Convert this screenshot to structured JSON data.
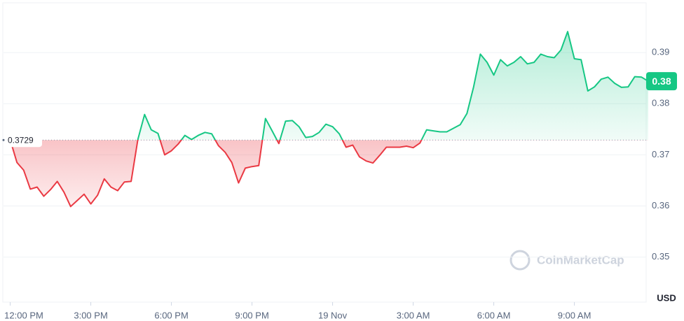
{
  "chart_data": {
    "type": "line",
    "x": [
      0,
      0.25,
      0.5,
      0.75,
      1,
      1.25,
      1.5,
      1.75,
      2,
      2.25,
      2.5,
      2.75,
      3,
      3.25,
      3.5,
      3.75,
      4,
      4.25,
      4.5,
      4.75,
      5,
      5.25,
      5.5,
      5.75,
      6,
      6.25,
      6.5,
      6.75,
      7,
      7.25,
      7.5,
      7.75,
      8,
      8.25,
      8.5,
      8.75,
      9,
      9.25,
      9.5,
      9.75,
      10,
      10.25,
      10.5,
      10.75,
      11,
      11.25,
      11.5,
      11.75,
      12,
      12.25,
      12.5,
      12.75,
      13,
      13.25,
      13.5,
      13.75,
      14,
      14.25,
      14.5,
      14.75,
      15,
      15.25,
      15.5,
      15.75,
      16,
      16.25,
      16.5,
      16.75,
      17,
      17.25,
      17.5,
      17.75,
      18,
      18.25,
      18.5,
      18.75,
      19,
      19.25,
      19.5,
      19.75,
      20,
      20.25,
      20.5,
      20.75,
      21,
      21.25,
      21.5,
      21.75,
      22,
      22.25,
      22.5,
      22.75,
      23,
      23.25,
      23.5,
      23.75
    ],
    "values": [
      0.3729,
      0.3685,
      0.367,
      0.3633,
      0.3637,
      0.3619,
      0.3632,
      0.3648,
      0.3627,
      0.3599,
      0.3611,
      0.3623,
      0.3604,
      0.3621,
      0.3653,
      0.3637,
      0.363,
      0.3647,
      0.3648,
      0.373,
      0.3779,
      0.3749,
      0.3742,
      0.37,
      0.3708,
      0.3721,
      0.3738,
      0.373,
      0.3738,
      0.3744,
      0.3741,
      0.3718,
      0.3705,
      0.3685,
      0.3645,
      0.3674,
      0.3677,
      0.3679,
      0.3771,
      0.3747,
      0.3722,
      0.3766,
      0.3767,
      0.3755,
      0.3734,
      0.3736,
      0.3744,
      0.376,
      0.3755,
      0.3741,
      0.3715,
      0.3719,
      0.3696,
      0.3688,
      0.3684,
      0.3699,
      0.3715,
      0.3715,
      0.3715,
      0.3717,
      0.3714,
      0.3723,
      0.3749,
      0.3747,
      0.3745,
      0.3745,
      0.3752,
      0.3759,
      0.3781,
      0.3833,
      0.3897,
      0.3881,
      0.3856,
      0.3886,
      0.3874,
      0.3881,
      0.3892,
      0.3878,
      0.3881,
      0.3897,
      0.3892,
      0.389,
      0.3905,
      0.3941,
      0.3888,
      0.3886,
      0.3825,
      0.3833,
      0.3848,
      0.3852,
      0.384,
      0.3832,
      0.3833,
      0.3853,
      0.3852,
      0.3844
    ],
    "color_above": "#16c784",
    "color_below": "#ea3943",
    "reference_line": {
      "value": 0.3729,
      "label": "0.3729"
    },
    "last_price": {
      "value": 0.3844,
      "label": "0.38"
    },
    "xlim": [
      -0.25,
      23.75
    ],
    "ylim": [
      0.3412,
      0.3996
    ],
    "xticks": [
      {
        "value": 0,
        "label": "12:00 PM"
      },
      {
        "value": 3,
        "label": "3:00 PM"
      },
      {
        "value": 6,
        "label": "6:00 PM"
      },
      {
        "value": 9,
        "label": "9:00 PM"
      },
      {
        "value": 12,
        "label": "19 Nov"
      },
      {
        "value": 15,
        "label": "3:00 AM"
      },
      {
        "value": 18,
        "label": "6:00 AM"
      },
      {
        "value": 21,
        "label": "9:00 AM"
      }
    ],
    "yticks": [
      0.35,
      0.36,
      0.37,
      0.38,
      0.39
    ],
    "y_axis_label": "USD",
    "watermark": "CoinMarketCap",
    "grid": true
  }
}
